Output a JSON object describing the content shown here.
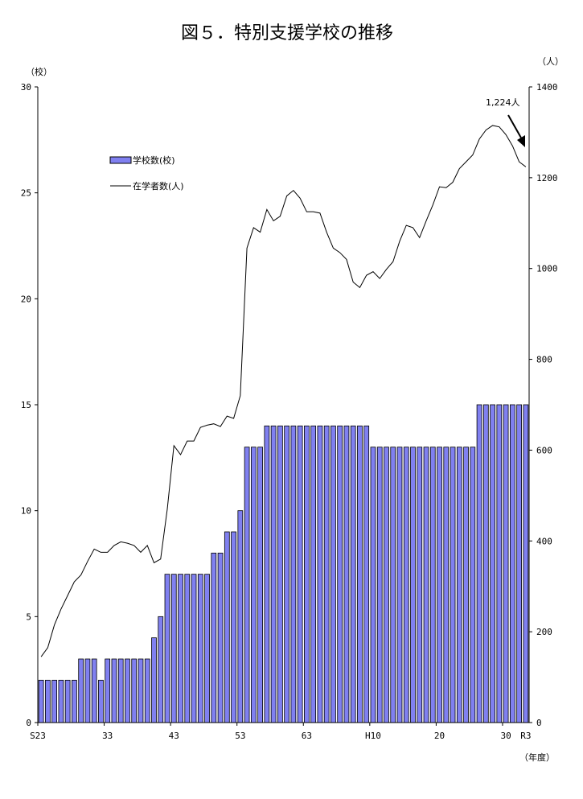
{
  "chart_data": {
    "type": "bar+line",
    "title": "図５．特別支援学校の推移",
    "left_unit": "（校）",
    "right_unit": "（人）",
    "xlabel": "（年度）",
    "left_ylim": [
      0,
      30
    ],
    "left_ticks": [
      "0",
      "5",
      "10",
      "15",
      "20",
      "25",
      "30"
    ],
    "right_ylim": [
      0,
      1400
    ],
    "right_ticks": [
      "0",
      "200",
      "400",
      "600",
      "800",
      "1000",
      "1200",
      "1400"
    ],
    "x_tick_labels": [
      {
        "index": 0,
        "label": "S23"
      },
      {
        "index": 10,
        "label": "33"
      },
      {
        "index": 20,
        "label": "43"
      },
      {
        "index": 30,
        "label": "53"
      },
      {
        "index": 40,
        "label": "63"
      },
      {
        "index": 50,
        "label": "H10"
      },
      {
        "index": 60,
        "label": "20"
      },
      {
        "index": 70,
        "label": "30"
      },
      {
        "index": 73,
        "label": "R3"
      }
    ],
    "legend": {
      "bar": "学校数(校)",
      "line": "在学者数(人)"
    },
    "annotation": "1,224人",
    "bar_color": "#8080f0",
    "series": [
      {
        "name": "学校数(校)",
        "axis": "left",
        "values": [
          2,
          2,
          2,
          2,
          2,
          2,
          3,
          3,
          3,
          2,
          3,
          3,
          3,
          3,
          3,
          3,
          3,
          4,
          5,
          7,
          7,
          7,
          7,
          7,
          7,
          7,
          8,
          8,
          9,
          9,
          10,
          13,
          13,
          13,
          14,
          14,
          14,
          14,
          14,
          14,
          14,
          14,
          14,
          14,
          14,
          14,
          14,
          14,
          14,
          14,
          13,
          13,
          13,
          13,
          13,
          13,
          13,
          13,
          13,
          13,
          13,
          13,
          13,
          13,
          13,
          13,
          15,
          15,
          15,
          15,
          15,
          15,
          15,
          15
        ]
      },
      {
        "name": "在学者数(人)",
        "axis": "right",
        "values": [
          145,
          165,
          215,
          250,
          280,
          310,
          325,
          355,
          382,
          375,
          375,
          390,
          398,
          395,
          390,
          375,
          390,
          352,
          360,
          470,
          610,
          590,
          620,
          620,
          650,
          655,
          658,
          652,
          675,
          670,
          720,
          1045,
          1090,
          1080,
          1130,
          1105,
          1115,
          1160,
          1172,
          1155,
          1125,
          1125,
          1122,
          1080,
          1045,
          1035,
          1020,
          970,
          958,
          985,
          993,
          978,
          998,
          1015,
          1060,
          1095,
          1090,
          1068,
          1105,
          1140,
          1180,
          1178,
          1190,
          1220,
          1235,
          1250,
          1285,
          1305,
          1315,
          1312,
          1295,
          1270,
          1235,
          1224
        ]
      }
    ]
  }
}
